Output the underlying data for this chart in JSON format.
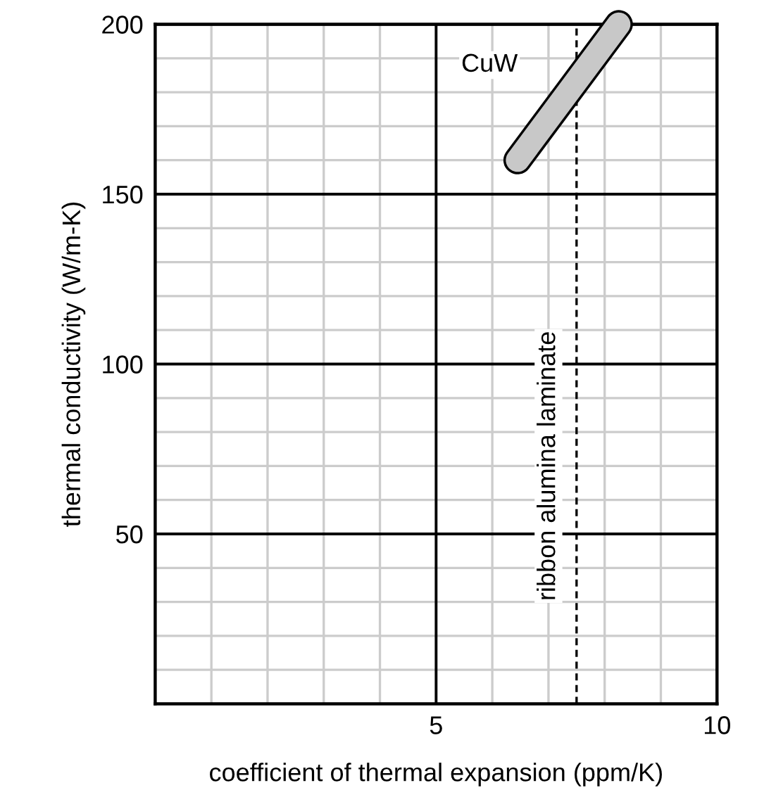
{
  "chart_data": {
    "type": "line",
    "xlabel": "coefficient of thermal expansion (ppm/K)",
    "ylabel": "thermal conductivity (W/m-K)",
    "series": [
      {
        "x": [
          6.45,
          8.25
        ],
        "values": [
          160,
          200
        ],
        "color": "#c8c8c8"
      }
    ],
    "xlim": [
      0,
      10
    ],
    "ylim": [
      0,
      200
    ],
    "xticks": [
      {
        "value": 1,
        "label": null
      },
      {
        "value": 2,
        "label": null
      },
      {
        "value": 3,
        "label": null
      },
      {
        "value": 4,
        "label": null
      },
      5,
      {
        "value": 6,
        "label": null
      },
      {
        "value": 7,
        "label": null
      },
      {
        "value": 8,
        "label": null
      },
      {
        "value": 9,
        "label": null
      },
      10
    ],
    "yticks": [
      {
        "value": 10,
        "label": null
      },
      {
        "value": 20,
        "label": null
      },
      {
        "value": 30,
        "label": null
      },
      {
        "value": 40,
        "label": null
      },
      50,
      {
        "value": 60,
        "label": null
      },
      {
        "value": 70,
        "label": null
      },
      {
        "value": 80,
        "label": null
      },
      {
        "value": 90,
        "label": null
      },
      100,
      {
        "value": 110,
        "label": null
      },
      {
        "value": 120,
        "label": null
      },
      {
        "value": 130,
        "label": null
      },
      {
        "value": 140,
        "label": null
      },
      150,
      {
        "value": 160,
        "label": null
      },
      {
        "value": 170,
        "label": null
      },
      {
        "value": 180,
        "label": null
      },
      {
        "value": 190,
        "label": null
      },
      200
    ],
    "grid": true,
    "ref_lines": [
      {
        "axis": "x",
        "value": 7.5,
        "label": "ribbon alumina laminate",
        "line_style": "dashed",
        "color": "#000000"
      }
    ],
    "annotations": [
      {
        "text": "CuW",
        "x": 5.95,
        "y": 188
      }
    ]
  }
}
